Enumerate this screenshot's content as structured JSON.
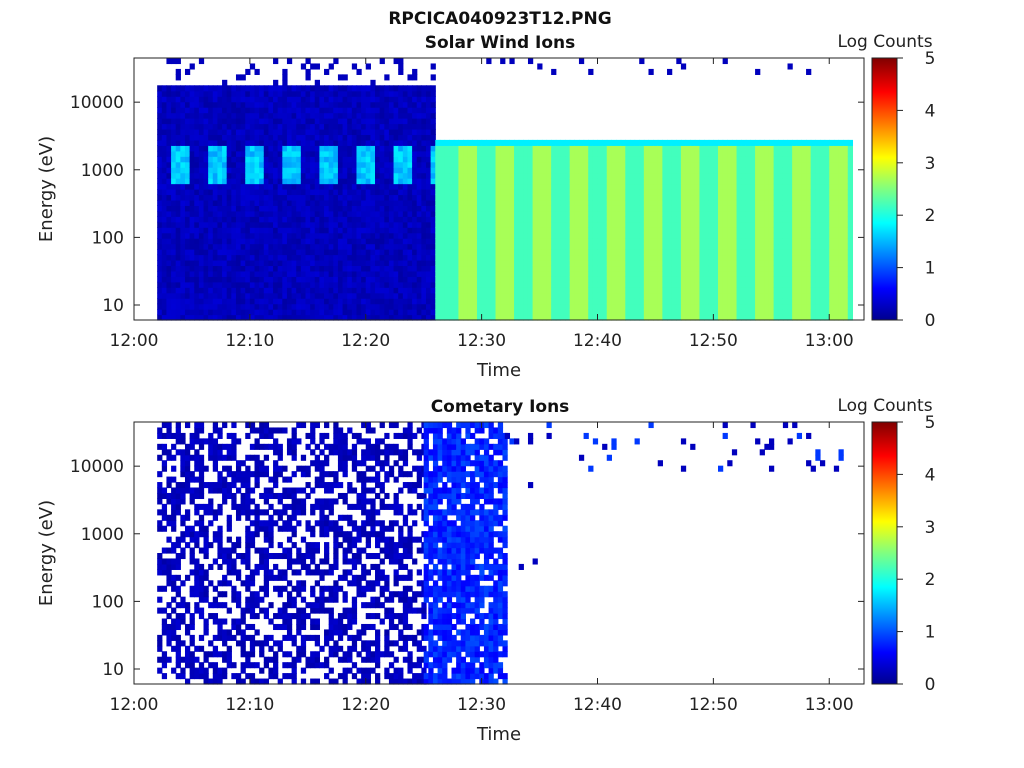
{
  "figure": {
    "title": "RPCICA040923T12.PNG"
  },
  "colorbar": {
    "label": "Log Counts",
    "ticks": [
      "0",
      "1",
      "2",
      "3",
      "4",
      "5"
    ],
    "range": [
      0,
      5
    ],
    "colormap": "jet"
  },
  "chart_data": [
    {
      "type": "heatmap",
      "title": "Solar Wind Ions",
      "xlabel": "Time",
      "ylabel": "Energy (eV)",
      "yscale": "log",
      "x_range": [
        "12:00",
        "13:03"
      ],
      "y_range": [
        6,
        45000
      ],
      "x_ticks": [
        "12:00",
        "12:10",
        "12:20",
        "12:30",
        "12:40",
        "12:50",
        "13:00"
      ],
      "y_ticks": [
        "10",
        "100",
        "1000",
        "10000"
      ],
      "segments": [
        {
          "time": [
            "12:02",
            "12:26"
          ],
          "description_values": {
            "background_log_counts": 0.3,
            "band_energy_ev": [
              600,
              2200
            ],
            "band_log_counts": 1.6,
            "upper_energy_ev": 18000
          }
        },
        {
          "time": [
            "12:26",
            "13:02"
          ],
          "description_values": {
            "upper_energy_ev": 2700,
            "alternating_log_counts": [
              2.2,
              2.7
            ],
            "stripe_period_min": 3.2
          }
        }
      ]
    },
    {
      "type": "heatmap",
      "title": "Cometary Ions",
      "xlabel": "Time",
      "ylabel": "Energy (eV)",
      "yscale": "log",
      "x_range": [
        "12:00",
        "13:03"
      ],
      "y_range": [
        6,
        45000
      ],
      "x_ticks": [
        "12:00",
        "12:10",
        "12:20",
        "12:30",
        "12:40",
        "12:50",
        "13:00"
      ],
      "y_ticks": [
        "10",
        "100",
        "1000",
        "10000"
      ],
      "segments": [
        {
          "time": [
            "12:02",
            "12:25"
          ],
          "description_values": {
            "sparse_log_counts": 0.3
          }
        },
        {
          "time": [
            "12:25",
            "12:32"
          ],
          "description_values": {
            "log_counts": 0.8
          }
        },
        {
          "time": [
            "12:32",
            "13:02"
          ],
          "description_values": {
            "sparse_high_energy_log_counts": 0.3
          }
        }
      ]
    }
  ]
}
